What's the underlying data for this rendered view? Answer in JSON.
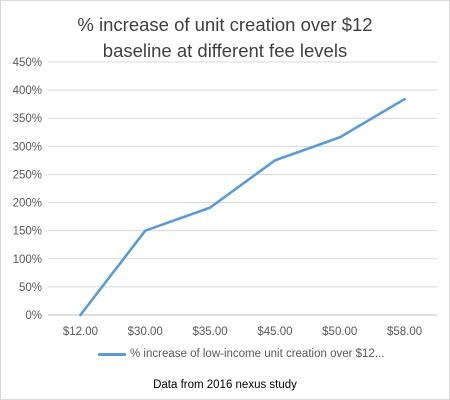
{
  "chart_data": {
    "type": "line",
    "title_line1": "% increase of unit creation over $12",
    "title_line2": "baseline at different fee levels",
    "categories": [
      "$12.00",
      "$30.00",
      "$35.00",
      "$45.00",
      "$50.00",
      "$58.00"
    ],
    "series": [
      {
        "name": "% increase of low-income unit creation over $12...",
        "values": [
          0,
          150,
          191,
          275,
          316,
          384
        ]
      }
    ],
    "y_ticks": [
      "0%",
      "50%",
      "100%",
      "150%",
      "200%",
      "250%",
      "300%",
      "350%",
      "400%",
      "450%"
    ],
    "ylim": [
      0,
      450
    ],
    "y_format": "percent",
    "grid": true,
    "legend_position": "bottom",
    "colors": {
      "series": "#5b9bd5",
      "grid": "#d9d9d9",
      "tick_text": "#595959",
      "title_text": "#404040"
    }
  },
  "caption": "Data from 2016 nexus study"
}
